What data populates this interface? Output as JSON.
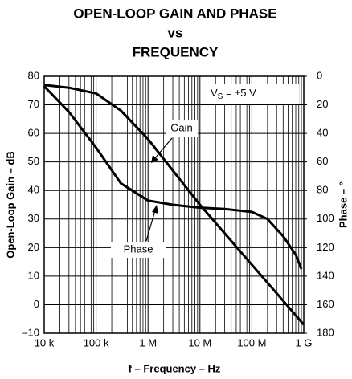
{
  "chart_data": {
    "type": "line",
    "title": [
      "OPEN-LOOP GAIN AND PHASE",
      "vs",
      "FREQUENCY"
    ],
    "xlabel": "f – Frequency – Hz",
    "ylabel": "Open-Loop Gain – dB",
    "y2label": "Phase – °",
    "xscale": "log",
    "xlim": [
      10000,
      1000000000
    ],
    "xticks": [
      {
        "value": 10000,
        "label": "10 k"
      },
      {
        "value": 100000,
        "label": "100 k"
      },
      {
        "value": 1000000,
        "label": "1 M"
      },
      {
        "value": 10000000,
        "label": "10 M"
      },
      {
        "value": 100000000,
        "label": "100 M"
      },
      {
        "value": 1000000000,
        "label": "1 G"
      }
    ],
    "xminorticks": [
      20000,
      30000,
      40000,
      50000,
      60000,
      70000,
      80000,
      90000,
      200000,
      300000,
      400000,
      500000,
      600000,
      700000,
      800000,
      900000,
      2000000,
      3000000,
      4000000,
      5000000,
      6000000,
      7000000,
      8000000,
      9000000,
      20000000,
      30000000,
      40000000,
      50000000,
      60000000,
      70000000,
      80000000,
      90000000,
      200000000,
      300000000,
      400000000,
      500000000,
      600000000,
      700000000,
      800000000,
      900000000
    ],
    "ylim": [
      -10,
      80
    ],
    "yticks": [
      {
        "value": -10,
        "label": "–10"
      },
      0,
      10,
      20,
      30,
      40,
      50,
      60,
      70,
      80
    ],
    "y2lim": [
      0,
      180
    ],
    "y2_inverted": true,
    "y2ticks": [
      0,
      20,
      40,
      60,
      80,
      100,
      120,
      140,
      160,
      180
    ],
    "grid": true,
    "annotations": {
      "gain": "Gain",
      "phase": "Phase",
      "vs_main": "V",
      "vs_sub": "S",
      "vs_rest": " = ±5 V"
    },
    "series": [
      {
        "name": "Gain",
        "color": "#000000",
        "axis": "y",
        "x": [
          10000,
          30000,
          100000,
          300000,
          1000000,
          3000000,
          10000000,
          30000000,
          100000000,
          300000000,
          1000000000
        ],
        "values": [
          77,
          76,
          74,
          68,
          58,
          47,
          35,
          25,
          14,
          4,
          -7
        ]
      },
      {
        "name": "Phase",
        "color": "#000000",
        "axis": "y2",
        "x": [
          10000,
          30000,
          100000,
          300000,
          1000000,
          3000000,
          10000000,
          30000000,
          100000000,
          200000000,
          400000000,
          700000000,
          900000000
        ],
        "values": [
          7,
          25,
          50,
          75,
          87,
          90,
          92,
          93,
          95,
          100,
          112,
          125,
          135
        ]
      }
    ]
  }
}
